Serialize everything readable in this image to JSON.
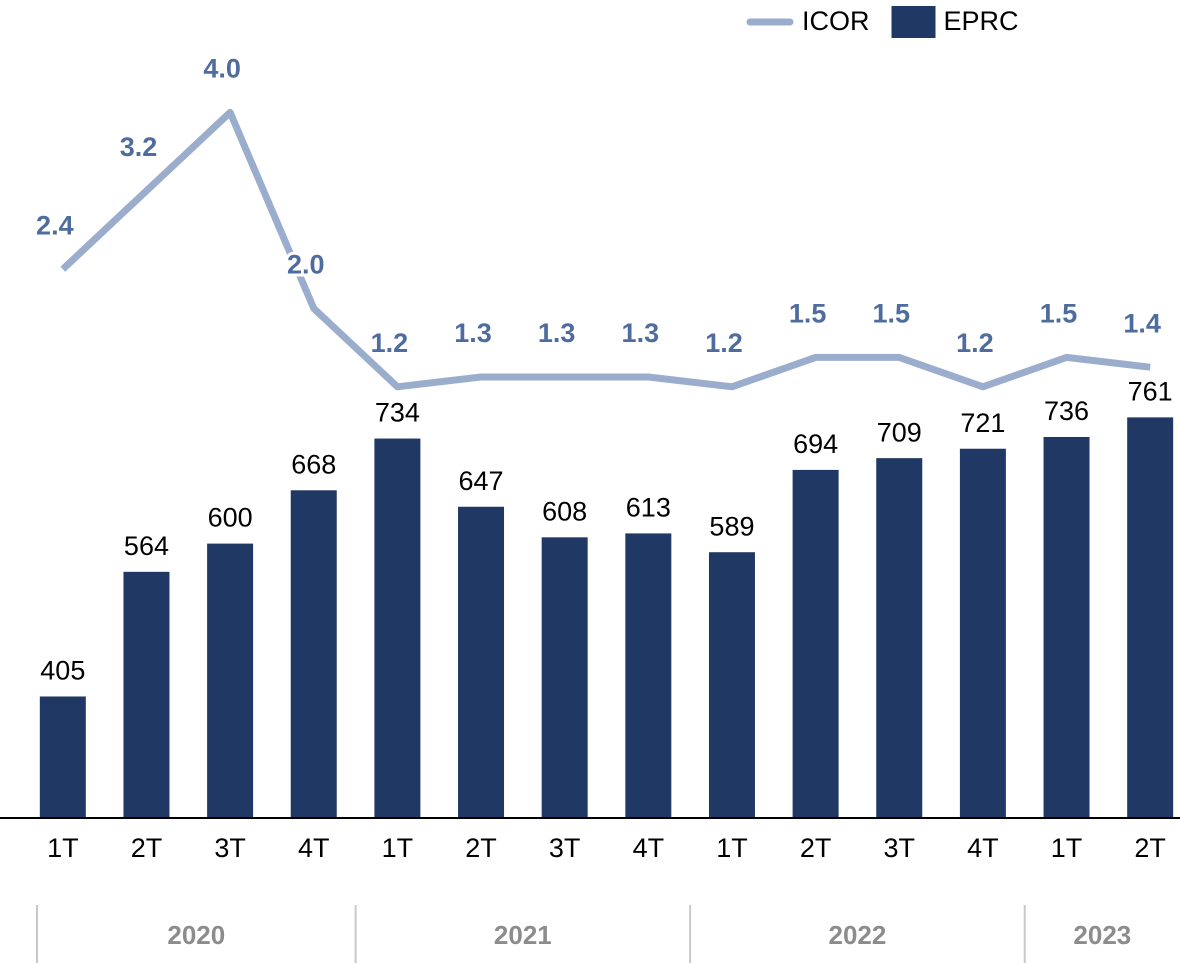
{
  "chart_data": {
    "type": "bar",
    "categories": [
      "1T",
      "2T",
      "3T",
      "4T",
      "1T",
      "2T",
      "3T",
      "4T",
      "1T",
      "2T",
      "3T",
      "4T",
      "1T",
      "2T"
    ],
    "x_groups": [
      {
        "label": "2020",
        "count": 4
      },
      {
        "label": "2021",
        "count": 4
      },
      {
        "label": "2022",
        "count": 4
      },
      {
        "label": "2023",
        "count": 2
      }
    ],
    "series": [
      {
        "name": "ICOR",
        "type": "line",
        "axis": "y2",
        "color": "#9badcc",
        "values": [
          2.4,
          3.2,
          4.0,
          2.0,
          1.2,
          1.3,
          1.3,
          1.3,
          1.2,
          1.5,
          1.5,
          1.2,
          1.5,
          1.4
        ],
        "value_labels": [
          "2.4",
          "3.2",
          "4.0",
          "2.0",
          "1.2",
          "1.3",
          "1.3",
          "1.3",
          "1.2",
          "1.5",
          "1.5",
          "1.2",
          "1.5",
          "1.4"
        ]
      },
      {
        "name": "EPRC",
        "type": "bar",
        "color": "#203864",
        "values": [
          405,
          564,
          600,
          668,
          734,
          647,
          608,
          613,
          589,
          694,
          709,
          721,
          736,
          761
        ]
      }
    ],
    "ylim": [
      250,
      1250
    ],
    "y2lim": [
      -3.2,
      4.8
    ],
    "legend": "top-right"
  }
}
